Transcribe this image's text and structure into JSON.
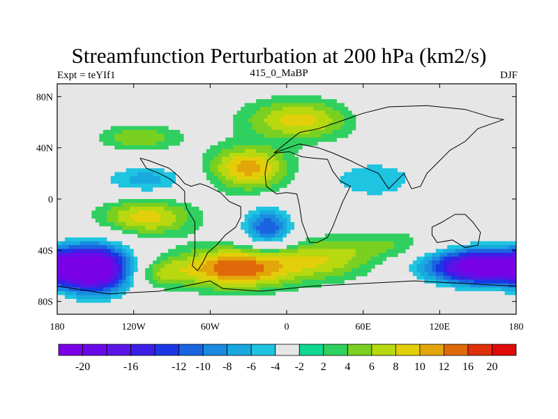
{
  "chart_data": {
    "type": "heatmap",
    "title": "Streamfunction Perturbation at 200 hPa (km2/s)",
    "left_label": "Expt = teYIf1",
    "center_label": "415_0_MaBP",
    "right_label": "DJF",
    "xlim": [
      -180,
      180
    ],
    "ylim": [
      -90,
      90
    ],
    "x_ticks": [
      {
        "value": -180,
        "label": "180"
      },
      {
        "value": -120,
        "label": "120W"
      },
      {
        "value": -60,
        "label": "60W"
      },
      {
        "value": 0,
        "label": "0"
      },
      {
        "value": 60,
        "label": "60E"
      },
      {
        "value": 120,
        "label": "120E"
      },
      {
        "value": 180,
        "label": "180"
      }
    ],
    "y_ticks": [
      {
        "value": 80,
        "label": "80N"
      },
      {
        "value": 40,
        "label": "40N"
      },
      {
        "value": 0,
        "label": "0"
      },
      {
        "value": -40,
        "label": "40S"
      },
      {
        "value": -80,
        "label": "80S"
      }
    ],
    "colorbar": {
      "levels": [
        -20,
        -18,
        -16,
        -14,
        -12,
        -10,
        -8,
        -6,
        -4,
        -2,
        2,
        4,
        6,
        8,
        10,
        12,
        16,
        20
      ],
      "level_labels": [
        "-20",
        "-16",
        "-12",
        "-10",
        "-8",
        "-6",
        "-4",
        "-2",
        "2",
        "4",
        "6",
        "8",
        "10",
        "12",
        "16",
        "20"
      ],
      "colors": [
        "#7a00e6",
        "#6a0ae8",
        "#5a14e6",
        "#3b1ee6",
        "#1a37e6",
        "#1a64e0",
        "#1a8ae0",
        "#18aade",
        "#1ec4e0",
        "#e6e6e6",
        "#10d890",
        "#30d060",
        "#7ad020",
        "#b8d810",
        "#e2cf0a",
        "#e2a60a",
        "#e06a0a",
        "#e0300a",
        "#e00a0a"
      ]
    },
    "field_centers": [
      {
        "lon": -150,
        "lat": -55,
        "amp": -22,
        "slon": 20,
        "slat": 14
      },
      {
        "lon": 155,
        "lat": -53,
        "amp": -24,
        "slon": 32,
        "slat": 10
      },
      {
        "lon": -15,
        "lat": -22,
        "amp": -12,
        "slon": 14,
        "slat": 11
      },
      {
        "lon": -40,
        "lat": -54,
        "amp": 14,
        "slon": 32,
        "slat": 11
      },
      {
        "lon": 30,
        "lat": -47,
        "amp": 7,
        "slon": 28,
        "slat": 11
      },
      {
        "lon": 80,
        "lat": -36,
        "amp": 4,
        "slon": 24,
        "slat": 8
      },
      {
        "lon": -30,
        "lat": 24,
        "amp": 11,
        "slon": 22,
        "slat": 12
      },
      {
        "lon": 10,
        "lat": 62,
        "amp": 9,
        "slon": 30,
        "slat": 11
      },
      {
        "lon": -110,
        "lat": -14,
        "amp": 9,
        "slon": 26,
        "slat": 10
      },
      {
        "lon": -115,
        "lat": 48,
        "amp": 6,
        "slon": 22,
        "slat": 7
      },
      {
        "lon": -110,
        "lat": 15,
        "amp": -7,
        "slon": 26,
        "slat": 9
      },
      {
        "lon": 68,
        "lat": 15,
        "amp": -6,
        "slon": 28,
        "slat": 12
      },
      {
        "lon": 105,
        "lat": 70,
        "amp": -4,
        "slon": 34,
        "slat": 10
      },
      {
        "lon": -150,
        "lat": 78,
        "amp": -3.5,
        "slon": 25,
        "slat": 8
      },
      {
        "lon": 150,
        "lat": 30,
        "amp": -3,
        "slon": 26,
        "slat": 12
      },
      {
        "lon": -100,
        "lat": -58,
        "amp": 5,
        "slon": 15,
        "slat": 8
      }
    ],
    "land_outlines": [
      [
        [
          -115,
          32
        ],
        [
          -108,
          30
        ],
        [
          -100,
          27
        ],
        [
          -92,
          24
        ],
        [
          -85,
          18
        ],
        [
          -80,
          12
        ],
        [
          -75,
          10
        ],
        [
          -68,
          12
        ],
        [
          -62,
          10
        ],
        [
          -52,
          5
        ],
        [
          -45,
          -2
        ],
        [
          -36,
          -6
        ],
        [
          -36,
          -14
        ],
        [
          -40,
          -22
        ],
        [
          -48,
          -28
        ],
        [
          -55,
          -36
        ],
        [
          -62,
          -42
        ],
        [
          -66,
          -50
        ],
        [
          -70,
          -56
        ],
        [
          -74,
          -52
        ],
        [
          -72,
          -42
        ],
        [
          -72,
          -30
        ],
        [
          -72,
          -18
        ],
        [
          -78,
          -8
        ],
        [
          -80,
          -2
        ],
        [
          -80,
          6
        ],
        [
          -84,
          10
        ],
        [
          -92,
          16
        ],
        [
          -100,
          20
        ],
        [
          -110,
          24
        ],
        [
          -115,
          32
        ]
      ],
      [
        [
          -15,
          30
        ],
        [
          -8,
          36
        ],
        [
          2,
          37
        ],
        [
          12,
          33
        ],
        [
          20,
          32
        ],
        [
          32,
          31
        ],
        [
          36,
          22
        ],
        [
          42,
          14
        ],
        [
          50,
          10
        ],
        [
          44,
          -2
        ],
        [
          40,
          -12
        ],
        [
          36,
          -22
        ],
        [
          32,
          -30
        ],
        [
          24,
          -34
        ],
        [
          18,
          -34
        ],
        [
          12,
          -18
        ],
        [
          10,
          -5
        ],
        [
          8,
          4
        ],
        [
          0,
          5
        ],
        [
          -8,
          4
        ],
        [
          -16,
          10
        ],
        [
          -17,
          20
        ],
        [
          -15,
          30
        ]
      ],
      [
        [
          -10,
          36
        ],
        [
          0,
          44
        ],
        [
          10,
          52
        ],
        [
          25,
          55
        ],
        [
          40,
          60
        ],
        [
          60,
          67
        ],
        [
          80,
          72
        ],
        [
          110,
          73
        ],
        [
          140,
          70
        ],
        [
          160,
          64
        ],
        [
          170,
          62
        ],
        [
          150,
          55
        ],
        [
          140,
          45
        ],
        [
          128,
          38
        ],
        [
          120,
          30
        ],
        [
          110,
          20
        ],
        [
          105,
          10
        ],
        [
          98,
          8
        ],
        [
          92,
          20
        ],
        [
          80,
          8
        ],
        [
          72,
          20
        ],
        [
          60,
          25
        ],
        [
          50,
          30
        ],
        [
          36,
          36
        ],
        [
          25,
          40
        ],
        [
          10,
          43
        ],
        [
          -10,
          36
        ]
      ],
      [
        [
          114,
          -22
        ],
        [
          122,
          -18
        ],
        [
          132,
          -12
        ],
        [
          140,
          -12
        ],
        [
          146,
          -18
        ],
        [
          152,
          -26
        ],
        [
          150,
          -36
        ],
        [
          140,
          -38
        ],
        [
          130,
          -32
        ],
        [
          118,
          -34
        ],
        [
          114,
          -28
        ],
        [
          114,
          -22
        ]
      ],
      [
        [
          -180,
          -68
        ],
        [
          -140,
          -74
        ],
        [
          -100,
          -72
        ],
        [
          -60,
          -64
        ],
        [
          -50,
          -70
        ],
        [
          -20,
          -72
        ],
        [
          20,
          -68
        ],
        [
          60,
          -66
        ],
        [
          100,
          -64
        ],
        [
          140,
          -66
        ],
        [
          180,
          -68
        ]
      ]
    ]
  }
}
